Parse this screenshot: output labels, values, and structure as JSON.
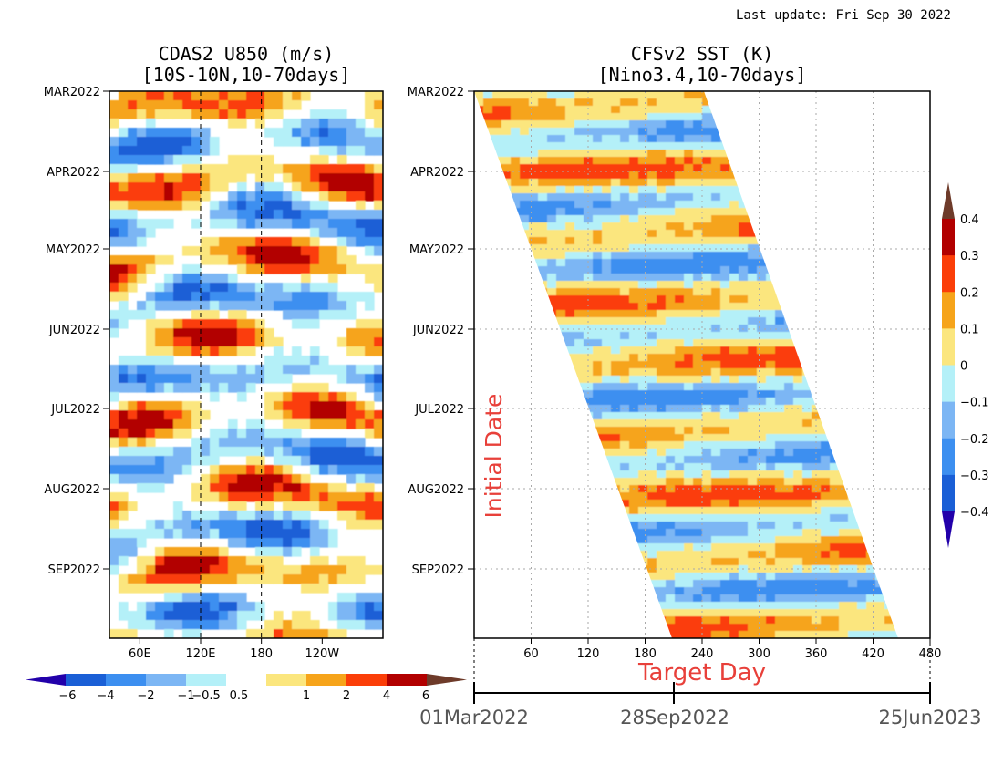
{
  "last_update": "Last update: Fri Sep 30 2022",
  "colors": {
    "levels": [
      "#2200aa",
      "#1a5fd6",
      "#3c8ff0",
      "#7cb6f4",
      "#b4f0f8",
      "#ffffff",
      "#fbe67e",
      "#f6a41a",
      "#fb3e08",
      "#b20000",
      "#6e3b2a"
    ],
    "annotation_red": "#e8403a"
  },
  "chart_data": [
    {
      "type": "heatmap",
      "title": "CDAS2 U850 (m/s)",
      "subtitle": "[10S-10N,10-70days]",
      "y_ticks": [
        "MAR2022",
        "APR2022",
        "MAY2022",
        "JUN2022",
        "JUL2022",
        "AUG2022",
        "SEP2022"
      ],
      "x_ticks": [
        "60E",
        "120E",
        "180",
        "120W"
      ],
      "x_range": [
        "30E",
        "120W"
      ],
      "reference_lines": [
        "120E",
        "180"
      ],
      "colorbar": {
        "orientation": "horizontal",
        "labels": [
          "−6",
          "−4",
          "−2",
          "−1",
          "−0.5",
          "0.5",
          "1",
          "2",
          "4",
          "6"
        ]
      }
    },
    {
      "type": "heatmap",
      "title": "CFSv2 SST (K)",
      "subtitle": "[Nino3.4,10-70days]",
      "y_ticks": [
        "MAR2022",
        "APR2022",
        "MAY2022",
        "JUN2022",
        "JUL2022",
        "AUG2022",
        "SEP2022"
      ],
      "x_ticks": [
        60,
        120,
        180,
        240,
        300,
        360,
        420,
        480
      ],
      "x_range": [
        0,
        480
      ],
      "ylabel": "Initial Date",
      "xlabel": "Target Day",
      "date_axis": [
        "01Mar2022",
        "28Sep2022",
        "25Jun2023"
      ],
      "grid": true,
      "colorbar": {
        "orientation": "vertical",
        "labels": [
          "0.4",
          "0.3",
          "0.2",
          "0.1",
          "0",
          "−0.1",
          "−0.2",
          "−0.3",
          "−0.4"
        ]
      }
    }
  ]
}
